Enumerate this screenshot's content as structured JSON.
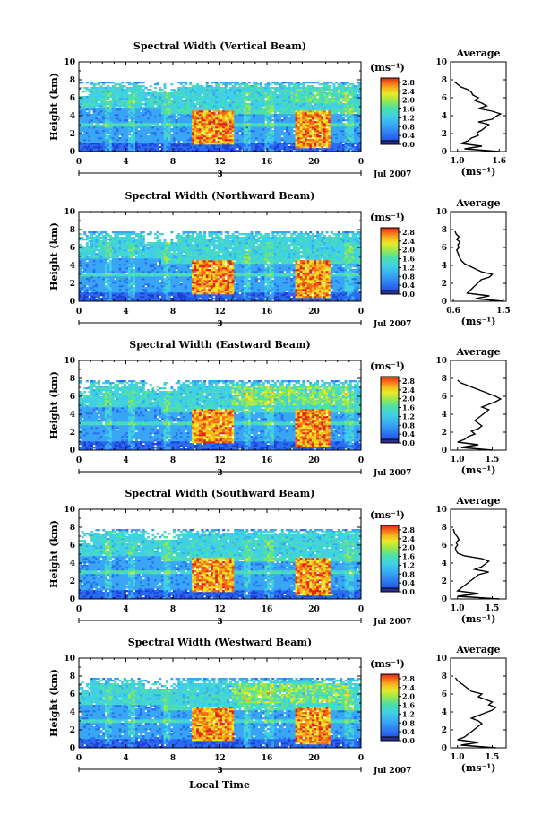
{
  "xlabel": "Local Time",
  "date_label": "Jul 2007",
  "day_label": "3",
  "x_ticks": [
    "0",
    "4",
    "8",
    "12",
    "16",
    "20",
    "0"
  ],
  "colorbar": {
    "unit": "(ms⁻¹)",
    "ticks": [
      "2.8",
      "2.4",
      "2.0",
      "1.6",
      "1.2",
      "0.8",
      "0.4",
      "0.0"
    ],
    "min": 0.0,
    "max": 3.0,
    "colors": [
      "#2b2e8c",
      "#1e3fd8",
      "#2a6cf0",
      "#38a6f4",
      "#3fd0e6",
      "#4fe0a8",
      "#9ce84a",
      "#e8ea2a",
      "#f6b31e",
      "#f46a18",
      "#e0241a"
    ]
  },
  "chart_data": [
    {
      "type": "heatmap",
      "title": "Spectral Width (Vertical Beam)",
      "ylabel": "Height (km)",
      "xlim": [
        0,
        24
      ],
      "ylim": [
        0,
        10
      ],
      "y_ticks": [
        "0",
        "2",
        "4",
        "6",
        "8",
        "10"
      ],
      "profile": {
        "title": "Average",
        "xlabel": "(ms⁻¹)",
        "x_ticks": [
          "1.0",
          "1.6"
        ],
        "xlim": [
          0.9,
          1.7
        ],
        "x_tick_values": [
          1.0,
          1.6
        ],
        "heights": [
          0,
          0.3,
          0.6,
          0.9,
          1.2,
          1.5,
          1.8,
          2.1,
          2.4,
          2.7,
          3.0,
          3.3,
          3.6,
          3.9,
          4.2,
          4.5,
          4.8,
          5.1,
          5.4,
          5.7,
          6.0,
          6.3,
          6.6,
          6.9,
          7.2,
          7.5,
          7.8
        ],
        "values": [
          1.6,
          1.1,
          1.35,
          1.05,
          1.15,
          1.2,
          1.3,
          1.28,
          1.35,
          1.4,
          1.45,
          1.3,
          1.5,
          1.55,
          1.62,
          1.5,
          1.3,
          1.42,
          1.35,
          1.25,
          1.3,
          1.22,
          1.2,
          1.15,
          1.05,
          1.0,
          0.95
        ]
      }
    },
    {
      "type": "heatmap",
      "title": "Spectral Width (Northward Beam)",
      "ylabel": "Height (km)",
      "xlim": [
        0,
        24
      ],
      "ylim": [
        0,
        10
      ],
      "y_ticks": [
        "0",
        "2",
        "4",
        "6",
        "8",
        "10"
      ],
      "profile": {
        "title": "Average",
        "xlabel": "(ms⁻¹)",
        "x_ticks": [
          "0.6",
          "1.5"
        ],
        "xlim": [
          0.55,
          1.55
        ],
        "x_tick_values": [
          0.6,
          1.5
        ],
        "heights": [
          0,
          0.3,
          0.6,
          0.9,
          1.2,
          1.5,
          1.8,
          2.1,
          2.4,
          2.7,
          3.0,
          3.3,
          3.6,
          3.9,
          4.2,
          4.5,
          4.8,
          5.1,
          5.4,
          5.7,
          6.0,
          6.3,
          6.6,
          6.9,
          7.2,
          7.5,
          7.8
        ],
        "values": [
          1.5,
          1.0,
          1.25,
          0.85,
          0.9,
          0.95,
          1.0,
          1.05,
          1.1,
          1.25,
          1.3,
          1.1,
          1.0,
          0.9,
          0.8,
          0.75,
          0.72,
          0.7,
          0.68,
          0.66,
          0.7,
          0.68,
          0.72,
          0.66,
          0.7,
          0.65,
          0.63
        ]
      }
    },
    {
      "type": "heatmap",
      "title": "Spectral Width (Eastward Beam)",
      "ylabel": "Height (km)",
      "xlim": [
        0,
        24
      ],
      "ylim": [
        0,
        10
      ],
      "y_ticks": [
        "0",
        "2",
        "4",
        "6",
        "8",
        "10"
      ],
      "profile": {
        "title": "Average",
        "xlabel": "(ms⁻¹)",
        "x_ticks": [
          "1.0",
          "1.5"
        ],
        "xlim": [
          0.9,
          1.7
        ],
        "x_tick_values": [
          1.0,
          1.5
        ],
        "heights": [
          0,
          0.3,
          0.6,
          0.9,
          1.2,
          1.5,
          1.8,
          2.1,
          2.4,
          2.7,
          3.0,
          3.3,
          3.6,
          3.9,
          4.2,
          4.5,
          4.8,
          5.1,
          5.4,
          5.7,
          6.0,
          6.3,
          6.6,
          6.9,
          7.2,
          7.5,
          7.8
        ],
        "values": [
          1.5,
          1.05,
          1.3,
          1.0,
          1.1,
          1.15,
          1.25,
          1.2,
          1.3,
          1.35,
          1.3,
          1.25,
          1.3,
          1.35,
          1.4,
          1.45,
          1.35,
          1.45,
          1.55,
          1.62,
          1.55,
          1.45,
          1.35,
          1.25,
          1.15,
          1.05,
          1.0
        ]
      }
    },
    {
      "type": "heatmap",
      "title": "Spectral Width (Southward Beam)",
      "ylabel": "Height (km)",
      "xlim": [
        0,
        24
      ],
      "ylim": [
        0,
        10
      ],
      "y_ticks": [
        "0",
        "2",
        "4",
        "6",
        "8",
        "10"
      ],
      "profile": {
        "title": "Average",
        "xlabel": "(ms⁻¹)",
        "x_ticks": [
          "1.0",
          "1.5"
        ],
        "xlim": [
          0.9,
          1.7
        ],
        "x_tick_values": [
          1.0,
          1.5
        ],
        "heights": [
          0,
          0.3,
          0.6,
          0.9,
          1.2,
          1.5,
          1.8,
          2.1,
          2.4,
          2.7,
          3.0,
          3.3,
          3.6,
          3.9,
          4.2,
          4.5,
          4.8,
          5.1,
          5.4,
          5.7,
          6.0,
          6.3,
          6.6,
          6.9,
          7.2,
          7.5,
          7.8
        ],
        "values": [
          1.6,
          1.0,
          1.3,
          1.0,
          1.05,
          1.1,
          1.15,
          1.2,
          1.25,
          1.3,
          1.45,
          1.25,
          1.35,
          1.4,
          1.45,
          1.35,
          1.1,
          1.0,
          0.98,
          0.97,
          1.0,
          0.98,
          1.02,
          1.0,
          0.97,
          0.95,
          0.94
        ]
      }
    },
    {
      "type": "heatmap",
      "title": "Spectral Width (Westward Beam)",
      "ylabel": "Height (km)",
      "xlim": [
        0,
        24
      ],
      "ylim": [
        0,
        10
      ],
      "y_ticks": [
        "0",
        "2",
        "4",
        "6",
        "8",
        "10"
      ],
      "profile": {
        "title": "Average",
        "xlabel": "(ms⁻¹)",
        "x_ticks": [
          "1.0",
          "1.5"
        ],
        "xlim": [
          0.9,
          1.7
        ],
        "x_tick_values": [
          1.0,
          1.5
        ],
        "heights": [
          0,
          0.3,
          0.6,
          0.9,
          1.2,
          1.5,
          1.8,
          2.1,
          2.4,
          2.7,
          3.0,
          3.3,
          3.6,
          3.9,
          4.2,
          4.5,
          4.8,
          5.1,
          5.4,
          5.7,
          6.0,
          6.3,
          6.6,
          6.9,
          7.2,
          7.5,
          7.8
        ],
        "values": [
          1.55,
          1.05,
          1.3,
          1.0,
          1.1,
          1.15,
          1.2,
          1.25,
          1.3,
          1.35,
          1.3,
          1.2,
          1.3,
          1.4,
          1.5,
          1.55,
          1.45,
          1.5,
          1.4,
          1.3,
          1.35,
          1.2,
          1.15,
          1.1,
          1.05,
          1.0,
          0.97
        ]
      }
    }
  ]
}
